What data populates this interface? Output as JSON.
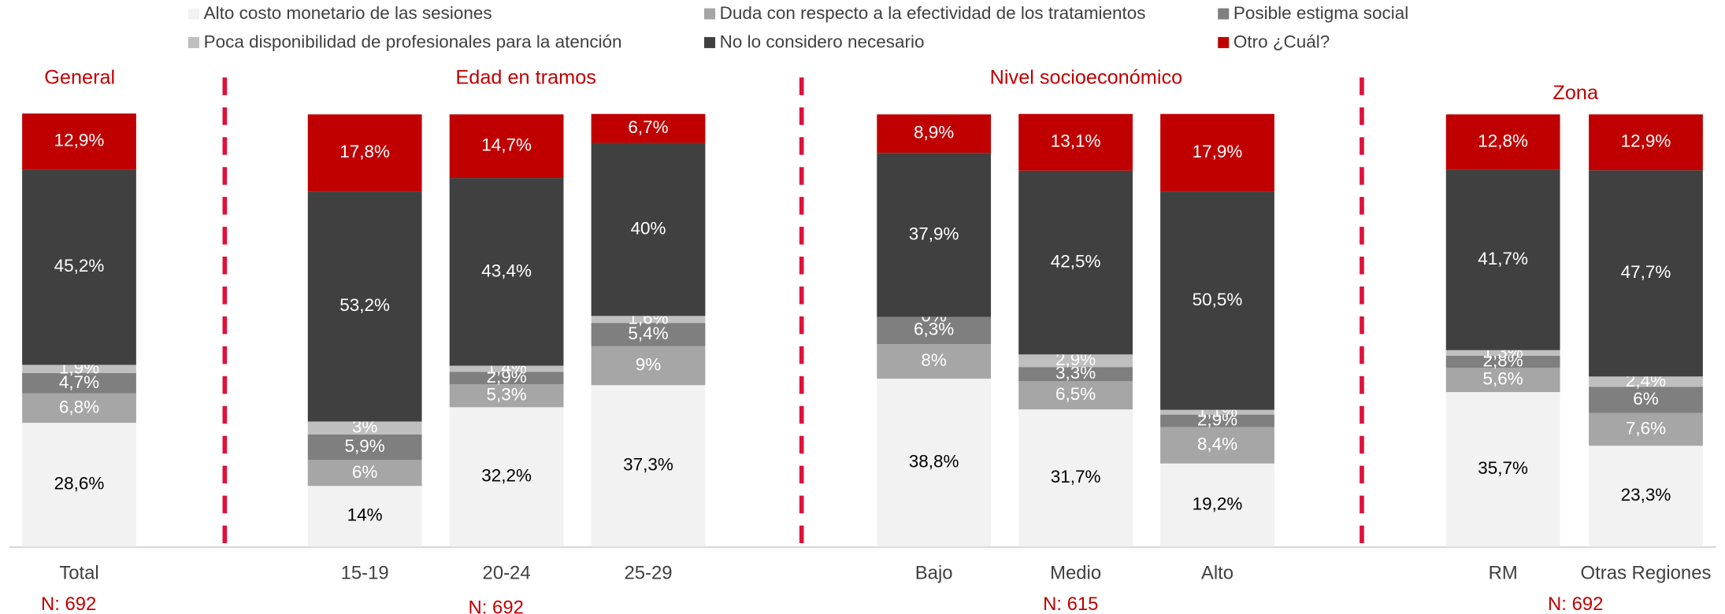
{
  "chart_data": {
    "type": "stacked_bar",
    "categories": [
      "Total",
      "15-19",
      "20-24",
      "25-29",
      "Bajo",
      "Medio",
      "Alto",
      "RM",
      "Otras Regiones"
    ],
    "groups": [
      {
        "title": "General",
        "n_label": "N: 692"
      },
      {
        "title": "Edad en tramos",
        "n_label": "N: 692"
      },
      {
        "title": "Nivel socioeconómico",
        "n_label": "N: 615"
      },
      {
        "title": "Zona",
        "n_label": "N: 692"
      }
    ],
    "ylim": [
      0,
      100
    ],
    "series": [
      {
        "name": "Alto costo monetario de las sesiones",
        "color": "#f2f2f2",
        "values": [
          28.6,
          14,
          32.2,
          37.3,
          38.8,
          31.7,
          19.2,
          35.7,
          23.3
        ],
        "value_labels": [
          "28,6%",
          "14%",
          "32,2%",
          "37,3%",
          "38,8%",
          "31,7%",
          "19,2%",
          "35,7%",
          "23,3%"
        ]
      },
      {
        "name": "Duda con respecto a la efectividad de los tratamientos",
        "color": "#a6a6a6",
        "values": [
          6.8,
          6,
          5.3,
          9,
          8,
          6.5,
          8.4,
          5.6,
          7.6
        ],
        "value_labels": [
          "6,8%",
          "6%",
          "5,3%",
          "9%",
          "8%",
          "6,5%",
          "8,4%",
          "5,6%",
          "7,6%"
        ]
      },
      {
        "name": "Posible estigma social",
        "color": "#7f7f7f",
        "values": [
          4.7,
          5.9,
          2.9,
          5.4,
          6.3,
          3.3,
          2.9,
          2.8,
          6
        ],
        "value_labels": [
          "4,7%",
          "5,9%",
          "2,9%",
          "5,4%",
          "6,3%",
          "3,3%",
          "2,9%",
          "2,8%",
          "6%"
        ]
      },
      {
        "name": "Poca disponibilidad de profesionales para la atención",
        "color": "#bfbfbf",
        "values": [
          1.9,
          3,
          1.4,
          1.6,
          0,
          2.9,
          1.1,
          1.3,
          2.4
        ],
        "value_labels": [
          "1,9%",
          "3%",
          "1,4%",
          "1,6%",
          "0%",
          "2,9%",
          "1,1%",
          "1,3%",
          "2,4%"
        ]
      },
      {
        "name": "No lo considero necesario",
        "color": "#404040",
        "values": [
          45.2,
          53.2,
          43.4,
          40,
          37.9,
          42.5,
          50.5,
          41.7,
          47.7
        ],
        "value_labels": [
          "45,2%",
          "53,2%",
          "43,4%",
          "40%",
          "37,9%",
          "42,5%",
          "50,5%",
          "41,7%",
          "47,7%"
        ]
      },
      {
        "name": "Otro ¿Cuál?",
        "color": "#c00000",
        "values": [
          12.9,
          17.8,
          14.7,
          6.7,
          8.9,
          13.1,
          17.9,
          12.8,
          12.9
        ],
        "value_labels": [
          "12,9%",
          "17,8%",
          "14,7%",
          "6,7%",
          "8,9%",
          "13,1%",
          "17,9%",
          "12,8%",
          "12,9%"
        ]
      }
    ]
  }
}
